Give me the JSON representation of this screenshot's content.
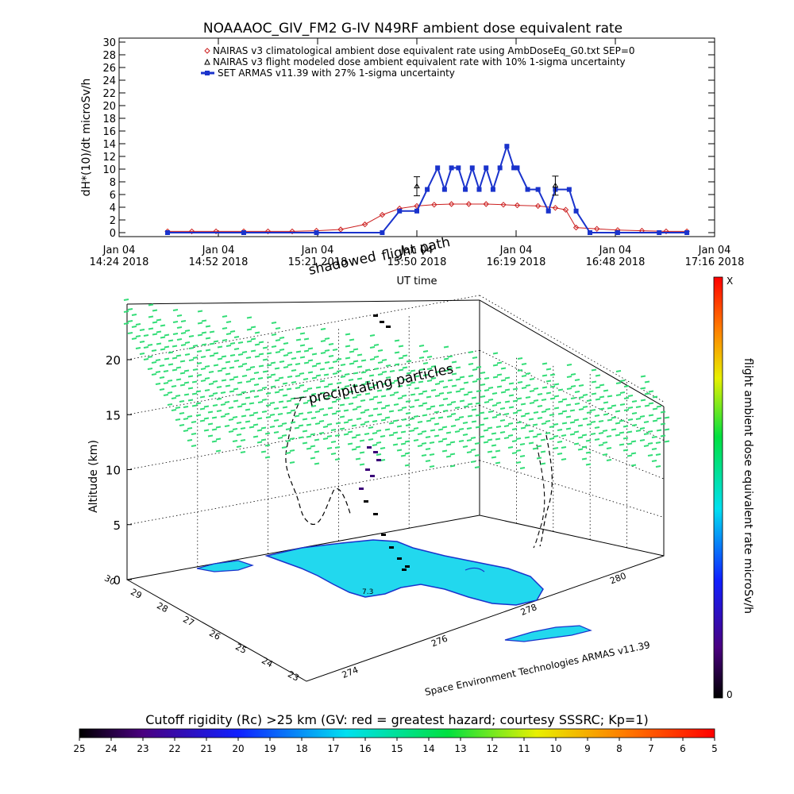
{
  "top_chart": {
    "title": "NOAAAOC_GIV_FM2 G-IV    N49RF   ambient dose equivalent rate",
    "ylabel": "dH*(10)/dt microSv/h",
    "legend": [
      "NAIRAS v3 climatological ambient dose equivalent rate using AmbDoseEq_G0.txt SEP=0",
      "NAIRAS v3 flight modeled dose ambient equivalent rate with 10% 1-sigma uncertainty",
      "SET ARMAS v11.39 with 27% 1-sigma uncertainty"
    ],
    "x_ticks": [
      {
        "date": "Jan 04",
        "time": "14:24 2018"
      },
      {
        "date": "Jan 04",
        "time": "14:52 2018"
      },
      {
        "date": "Jan 04",
        "time": "15:21 2018"
      },
      {
        "date": "Jan 04",
        "time": "15:50 2018"
      },
      {
        "date": "Jan 04",
        "time": "16:19 2018"
      },
      {
        "date": "Jan 04",
        "time": "16:48 2018"
      },
      {
        "date": "Jan 04",
        "time": "17:16 2018"
      }
    ],
    "xlabel": "UT time",
    "y_ticks": [
      "0",
      "2",
      "4",
      "6",
      "8",
      "10",
      "12",
      "14",
      "16",
      "18",
      "20",
      "22",
      "24",
      "26",
      "28",
      "30"
    ]
  },
  "chart_data": [
    {
      "type": "line",
      "title": "NOAAAOC_GIV_FM2 G-IV    N49RF   ambient dose equivalent rate",
      "xlabel": "UT time",
      "ylabel": "dH*(10)/dt microSv/h",
      "xlim": [
        "14:24",
        "17:16"
      ],
      "ylim": [
        0,
        30
      ],
      "series": [
        {
          "name": "NAIRAS v3 climatological ambient dose equivalent rate using AmbDoseEq_G0.txt SEP=0",
          "color": "#cc2020",
          "marker": "diamond",
          "x": [
            "14:38",
            "14:45",
            "14:52",
            "15:00",
            "15:07",
            "15:14",
            "15:21",
            "15:28",
            "15:35",
            "15:40",
            "15:45",
            "15:50",
            "15:55",
            "16:00",
            "16:05",
            "16:10",
            "16:15",
            "16:19",
            "16:25",
            "16:30",
            "16:33",
            "16:36",
            "16:42",
            "16:48",
            "16:55",
            "17:02",
            "17:08"
          ],
          "values": [
            0.2,
            0.2,
            0.2,
            0.2,
            0.2,
            0.2,
            0.3,
            0.5,
            1.3,
            2.8,
            3.8,
            4.2,
            4.4,
            4.5,
            4.5,
            4.5,
            4.4,
            4.3,
            4.2,
            3.9,
            3.6,
            0.8,
            0.6,
            0.4,
            0.3,
            0.2,
            0.2
          ]
        },
        {
          "name": "NAIRAS v3 flight modeled dose ambient equivalent rate with 10% 1-sigma uncertainty",
          "color": "#000000",
          "marker": "triangle",
          "x": [
            "15:50",
            "16:30"
          ],
          "values": [
            7.3,
            7.4
          ],
          "errors": [
            1.5,
            1.5
          ]
        },
        {
          "name": "SET ARMAS v11.39 with 27% 1-sigma uncertainty",
          "color": "#1a33cc",
          "marker": "square",
          "x": [
            "14:38",
            "15:00",
            "15:21",
            "15:40",
            "15:45",
            "15:50",
            "15:53",
            "15:56",
            "15:58",
            "16:00",
            "16:02",
            "16:04",
            "16:06",
            "16:08",
            "16:10",
            "16:12",
            "16:14",
            "16:16",
            "16:18",
            "16:19",
            "16:22",
            "16:25",
            "16:28",
            "16:30",
            "16:34",
            "16:36",
            "16:40",
            "16:48",
            "17:00",
            "17:08"
          ],
          "values": [
            0,
            0,
            0,
            0,
            3.4,
            3.4,
            6.8,
            10.2,
            6.8,
            10.2,
            10.2,
            6.8,
            10.2,
            6.8,
            10.2,
            6.8,
            10.2,
            13.6,
            10.2,
            10.2,
            6.8,
            6.8,
            3.4,
            6.8,
            6.8,
            3.4,
            0,
            0,
            0,
            0
          ]
        }
      ]
    },
    {
      "type": "scatter",
      "title": "",
      "zlabel": "Altitude (km)",
      "z_ticks": [
        "0",
        "5",
        "10",
        "15",
        "20"
      ],
      "lat_ticks": [
        "23",
        "24",
        "25",
        "26",
        "27",
        "28",
        "29",
        "30"
      ],
      "lon_ticks": [
        "274",
        "276",
        "278",
        "280"
      ],
      "colorbar": {
        "label": "flight ambient dose equivalent rate microSv/h",
        "top": "X",
        "bottom": "0"
      }
    }
  ],
  "annotations": {
    "shadowed": "shadowed",
    "flightpath": "flight path",
    "precipitating": "precipitating particles",
    "credit": "Space Environment Technologies ARMAS v11.39",
    "map_label": "7.3"
  },
  "rigidity_bar": {
    "title": "Cutoff rigidity (Rc) >25 km (GV: red = greatest hazard; courtesy SSSRC; Kp=1)",
    "ticks": [
      "25",
      "24",
      "23",
      "22",
      "21",
      "20",
      "19",
      "18",
      "17",
      "16",
      "15",
      "14",
      "13",
      "12",
      "11",
      "10",
      "9",
      "8",
      "7",
      "6",
      "5"
    ]
  },
  "colors": {
    "ambient": "#cc2020",
    "armas": "#1a33cc",
    "particles": "#33dd77",
    "land": "#22d8ee",
    "coast": "#1a33cc"
  }
}
